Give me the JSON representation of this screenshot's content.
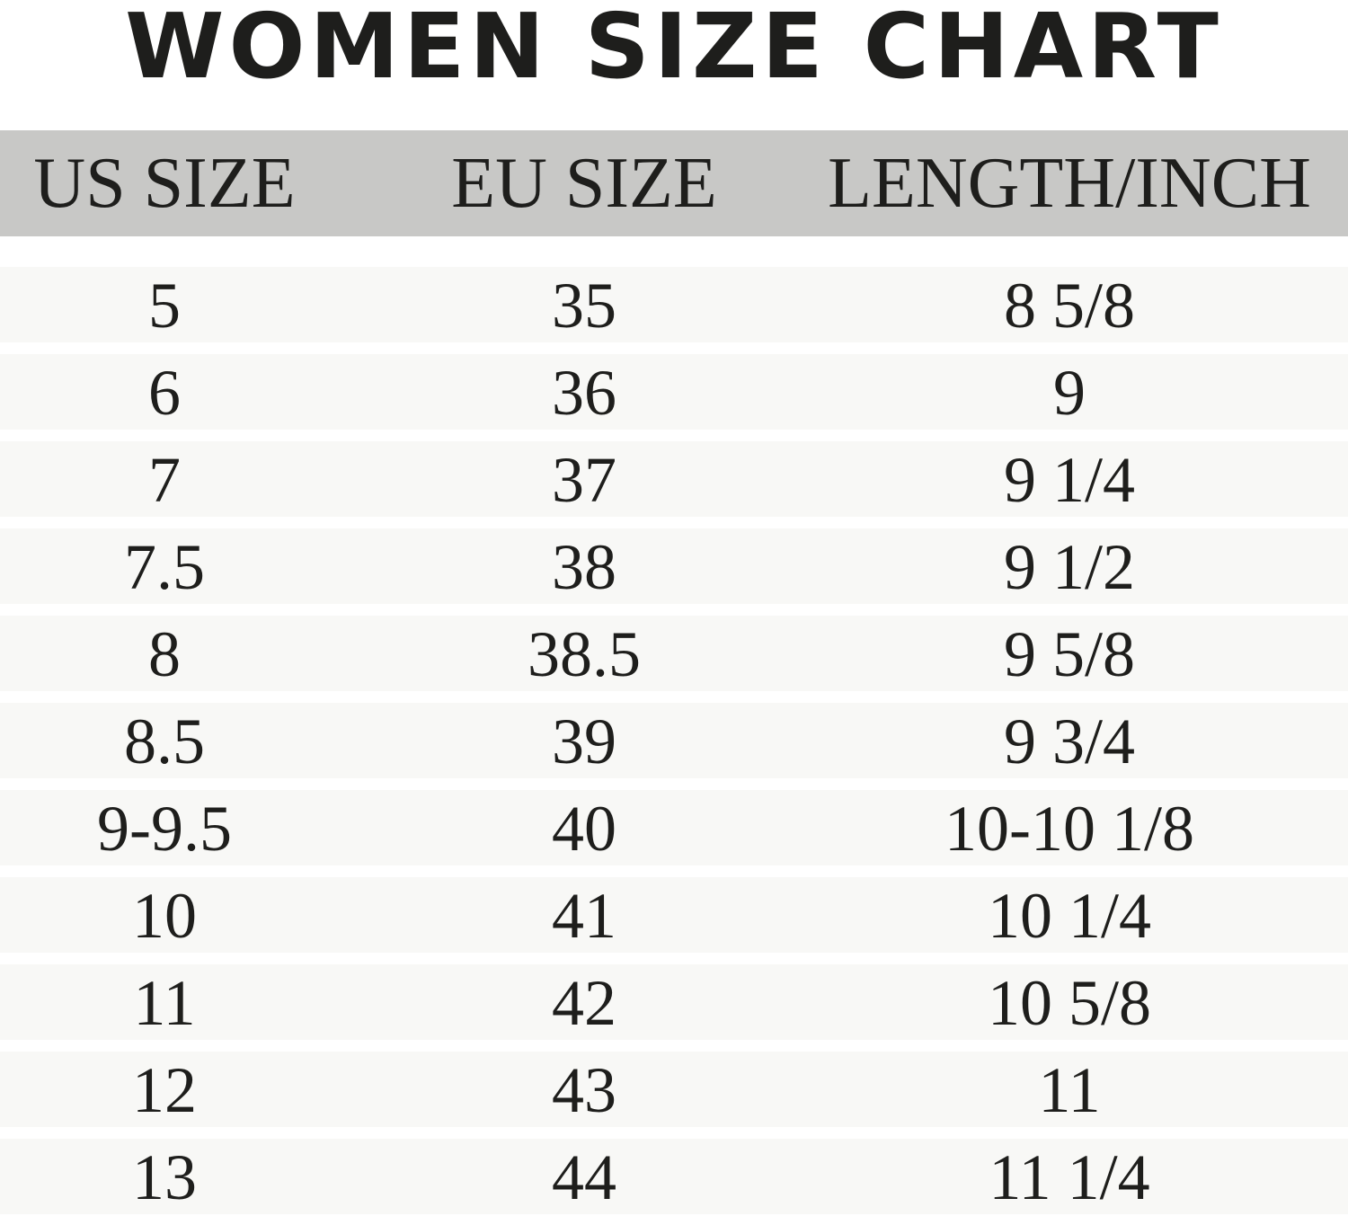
{
  "chart_data": {
    "type": "table",
    "title": "WOMEN SIZE CHART",
    "columns": [
      "US SIZE",
      "EU SIZE",
      "LENGTH/INCH"
    ],
    "rows": [
      [
        "5",
        "35",
        "8 5/8"
      ],
      [
        "6",
        "36",
        "9"
      ],
      [
        "7",
        "37",
        "9 1/4"
      ],
      [
        "7.5",
        "38",
        "9 1/2"
      ],
      [
        "8",
        "38.5",
        "9 5/8"
      ],
      [
        "8.5",
        "39",
        "9 3/4"
      ],
      [
        "9-9.5",
        "40",
        "10-10 1/8"
      ],
      [
        "10",
        "41",
        "10 1/4"
      ],
      [
        "11",
        "42",
        "10 5/8"
      ],
      [
        "12",
        "43",
        "11"
      ],
      [
        "13",
        "44",
        "11 1/4"
      ]
    ]
  },
  "colors": {
    "header_bg": "#c8c8c6",
    "row_bg": "#f8f8f6",
    "text": "#1e1e1c"
  }
}
